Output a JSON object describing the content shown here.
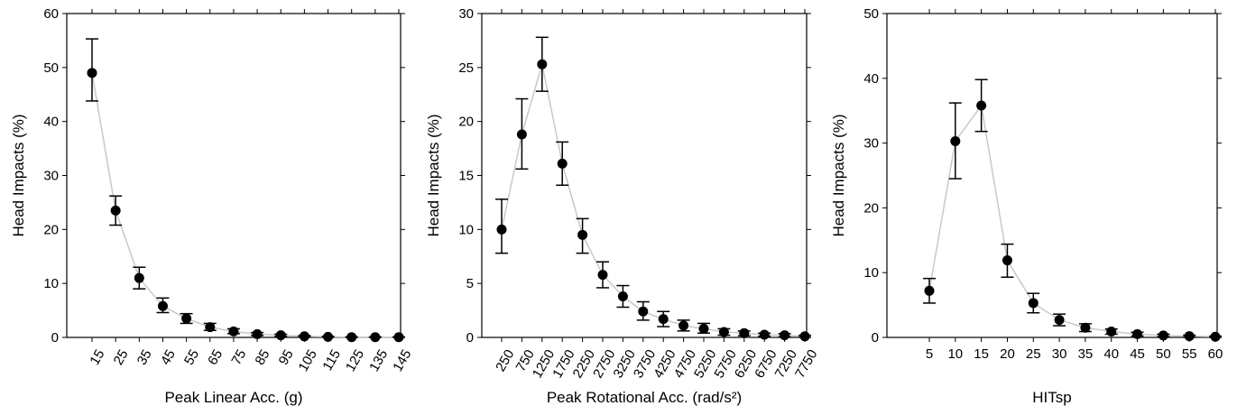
{
  "chart_data": [
    {
      "type": "scatter",
      "xlabel": "Peak Linear Acc. (g)",
      "ylabel": "Head Impacts (%)",
      "ylim": [
        0,
        60
      ],
      "yticks": [
        0,
        10,
        20,
        30,
        40,
        50,
        60
      ],
      "categories": [
        "15",
        "25",
        "35",
        "45",
        "55",
        "65",
        "75",
        "85",
        "95",
        "105",
        "115",
        "125",
        "135",
        "145"
      ],
      "values": [
        49,
        23.5,
        11,
        5.8,
        3.5,
        1.9,
        1.1,
        0.6,
        0.4,
        0.2,
        0.1,
        0.05,
        0.05,
        0.05
      ],
      "err_low": [
        43.8,
        20.8,
        9.0,
        4.6,
        2.6,
        1.3,
        0.7,
        0.35,
        0.2,
        0.1,
        0.05,
        0.02,
        0.02,
        0.02
      ],
      "err_high": [
        55.3,
        26.2,
        13.0,
        7.3,
        4.4,
        2.6,
        1.6,
        0.9,
        0.6,
        0.35,
        0.2,
        0.1,
        0.1,
        0.1
      ],
      "grid": false,
      "tick_rotation": -60
    },
    {
      "type": "scatter",
      "xlabel": "Peak Rotational Acc. (rad/s²)",
      "ylabel": "Head Impacts (%)",
      "ylim": [
        0,
        30
      ],
      "yticks": [
        0,
        5,
        10,
        15,
        20,
        25,
        30
      ],
      "categories": [
        "250",
        "750",
        "1250",
        "1750",
        "2250",
        "2750",
        "3250",
        "3750",
        "4250",
        "4750",
        "5250",
        "5750",
        "6250",
        "6750",
        "7250",
        "7750"
      ],
      "values": [
        10,
        18.8,
        25.3,
        16.1,
        9.5,
        5.8,
        3.8,
        2.4,
        1.7,
        1.1,
        0.8,
        0.5,
        0.4,
        0.25,
        0.2,
        0.1
      ],
      "err_low": [
        7.8,
        15.6,
        22.8,
        14.1,
        7.8,
        4.6,
        2.8,
        1.6,
        1.0,
        0.6,
        0.4,
        0.2,
        0.15,
        0.1,
        0.05,
        0.02
      ],
      "err_high": [
        12.8,
        22.1,
        27.8,
        18.1,
        11.0,
        7.0,
        4.8,
        3.3,
        2.4,
        1.6,
        1.3,
        0.8,
        0.6,
        0.4,
        0.35,
        0.2
      ],
      "grid": false,
      "tick_rotation": -60
    },
    {
      "type": "scatter",
      "xlabel": "HITsp",
      "ylabel": "Head Impacts (%)",
      "ylim": [
        0,
        50
      ],
      "yticks": [
        0,
        10,
        20,
        30,
        40,
        50
      ],
      "categories": [
        "5",
        "10",
        "15",
        "20",
        "25",
        "30",
        "35",
        "40",
        "45",
        "50",
        "55",
        "60"
      ],
      "values": [
        7.2,
        30.3,
        35.8,
        11.9,
        5.3,
        2.7,
        1.5,
        0.9,
        0.5,
        0.3,
        0.2,
        0.1
      ],
      "err_low": [
        5.3,
        24.5,
        31.8,
        9.3,
        3.8,
        1.8,
        0.9,
        0.5,
        0.2,
        0.1,
        0.05,
        0.02
      ],
      "err_high": [
        9.1,
        36.2,
        39.8,
        14.4,
        6.8,
        3.6,
        2.1,
        1.3,
        0.8,
        0.5,
        0.35,
        0.2
      ],
      "grid": false,
      "tick_rotation": 0
    }
  ]
}
